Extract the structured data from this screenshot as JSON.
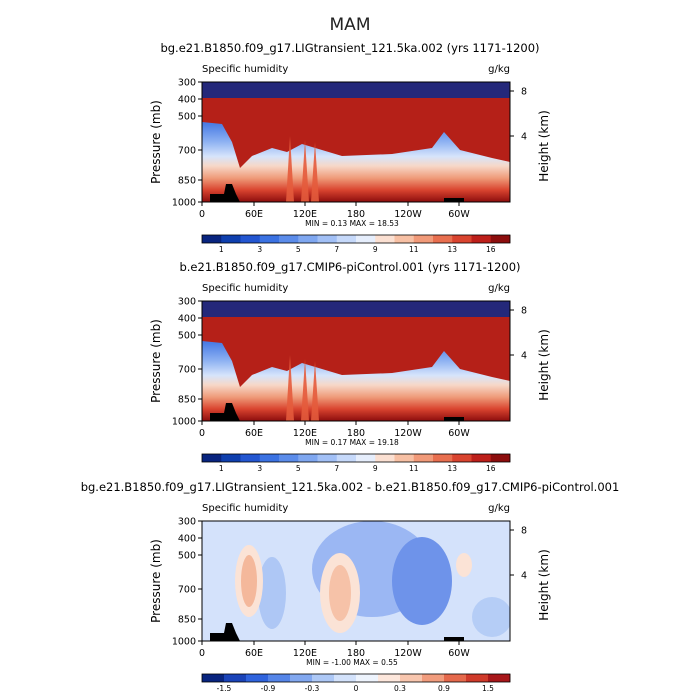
{
  "chart_data": {
    "suptitle": "MAM",
    "panels": [
      {
        "type": "heatmap",
        "title": "bg.e21.B1850.f09_g17.LIGtransient_121.5ka.002 (yrs 1171-1200)",
        "left_label": "Specific humidity",
        "right_label": "g/kg",
        "field": "absolute",
        "xlabel": "",
        "ylabel": "Pressure (mb)",
        "ylabel_right": "Height (km)",
        "x_ticks": [
          "0",
          "60E",
          "120E",
          "180",
          "120W",
          "60W"
        ],
        "y_ticks": [
          "300",
          "400",
          "500",
          "700",
          "850",
          "1000"
        ],
        "height_ticks": [
          "8",
          "4"
        ],
        "min_label": "MIN =",
        "min_value": "0.13",
        "max_label": "MAX =",
        "max_value": "18.53",
        "colorbar_ticks": [
          "1",
          "3",
          "5",
          "7",
          "9",
          "11",
          "13",
          "16"
        ],
        "colorbar_colors": [
          "#08247f",
          "#0f3fae",
          "#2356d1",
          "#3b72e2",
          "#5b8cea",
          "#7fa7f0",
          "#a2c0f6",
          "#c6d9fa",
          "#e6eefc",
          "#fbe0d2",
          "#f7c0a4",
          "#f19a79",
          "#e86f4f",
          "#d9442f",
          "#bd1f1a",
          "#8c0d0d"
        ]
      },
      {
        "type": "heatmap",
        "title": "b.e21.B1850.f09_g17.CMIP6-piControl.001 (yrs 1171-1200)",
        "left_label": "Specific humidity",
        "right_label": "g/kg",
        "field": "absolute",
        "xlabel": "",
        "ylabel": "Pressure (mb)",
        "ylabel_right": "Height (km)",
        "x_ticks": [
          "0",
          "60E",
          "120E",
          "180",
          "120W",
          "60W"
        ],
        "y_ticks": [
          "300",
          "400",
          "500",
          "700",
          "850",
          "1000"
        ],
        "height_ticks": [
          "8",
          "4"
        ],
        "min_label": "MIN =",
        "min_value": "0.17",
        "max_label": "MAX =",
        "max_value": "19.18",
        "colorbar_ticks": [
          "1",
          "3",
          "5",
          "7",
          "9",
          "11",
          "13",
          "16"
        ],
        "colorbar_colors": [
          "#08247f",
          "#0f3fae",
          "#2356d1",
          "#3b72e2",
          "#5b8cea",
          "#7fa7f0",
          "#a2c0f6",
          "#c6d9fa",
          "#e6eefc",
          "#fbe0d2",
          "#f7c0a4",
          "#f19a79",
          "#e86f4f",
          "#d9442f",
          "#bd1f1a",
          "#8c0d0d"
        ]
      },
      {
        "type": "heatmap",
        "title": "bg.e21.B1850.f09_g17.LIGtransient_121.5ka.002 - b.e21.B1850.f09_g17.CMIP6-piControl.001",
        "left_label": "Specific humidity",
        "right_label": "g/kg",
        "field": "difference",
        "xlabel": "",
        "ylabel": "Pressure (mb)",
        "ylabel_right": "Height (km)",
        "x_ticks": [
          "0",
          "60E",
          "120E",
          "180",
          "120W",
          "60W"
        ],
        "y_ticks": [
          "300",
          "400",
          "500",
          "700",
          "850",
          "1000"
        ],
        "height_ticks": [
          "8",
          "4"
        ],
        "min_label": "MIN =",
        "min_value": "-1.00",
        "max_label": "MAX =",
        "max_value": "0.55",
        "colorbar_ticks": [
          "-1.5",
          "-0.9",
          "-0.3",
          "0",
          "0.3",
          "0.9",
          "1.5"
        ],
        "colorbar_colors": [
          "#08247f",
          "#1a43b8",
          "#2f63dd",
          "#5585e8",
          "#82a8f0",
          "#adc8f6",
          "#d3e2fb",
          "#eef4fd",
          "#fde7dc",
          "#f8c6ae",
          "#f19c7d",
          "#e5694c",
          "#cf3a2a",
          "#a8171a"
        ]
      }
    ]
  }
}
